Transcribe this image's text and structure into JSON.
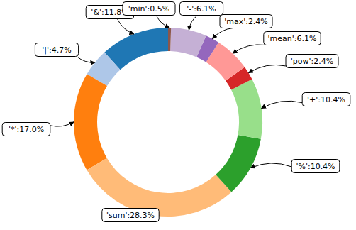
{
  "chart_data": {
    "type": "donut",
    "categories": [
      "'&'",
      "'|'",
      "'*'",
      "'sum'",
      "'%'",
      "'+'",
      "'pow'",
      "'mean'",
      "'max'",
      "'-'",
      "'min'"
    ],
    "values": [
      11.8,
      4.7,
      17.0,
      28.3,
      10.4,
      10.4,
      2.4,
      6.1,
      2.4,
      6.1,
      0.5
    ],
    "value_labels": [
      "'&':11.8%",
      "'|':4.7%",
      "'*':17.0%",
      "'sum':28.3%",
      "'%':10.4%",
      "'+':10.4%",
      "'pow':2.4%",
      "'mean':6.1%",
      "'max':2.4%",
      "'-':6.1%",
      "'min':0.5%"
    ],
    "colors": [
      "#1f77b4",
      "#aec7e8",
      "#ff7f0e",
      "#ffbb78",
      "#2ca02c",
      "#98df8a",
      "#d62728",
      "#ff9896",
      "#9467bd",
      "#c5b0d5",
      "#8c564b"
    ],
    "data_labels": true
  }
}
